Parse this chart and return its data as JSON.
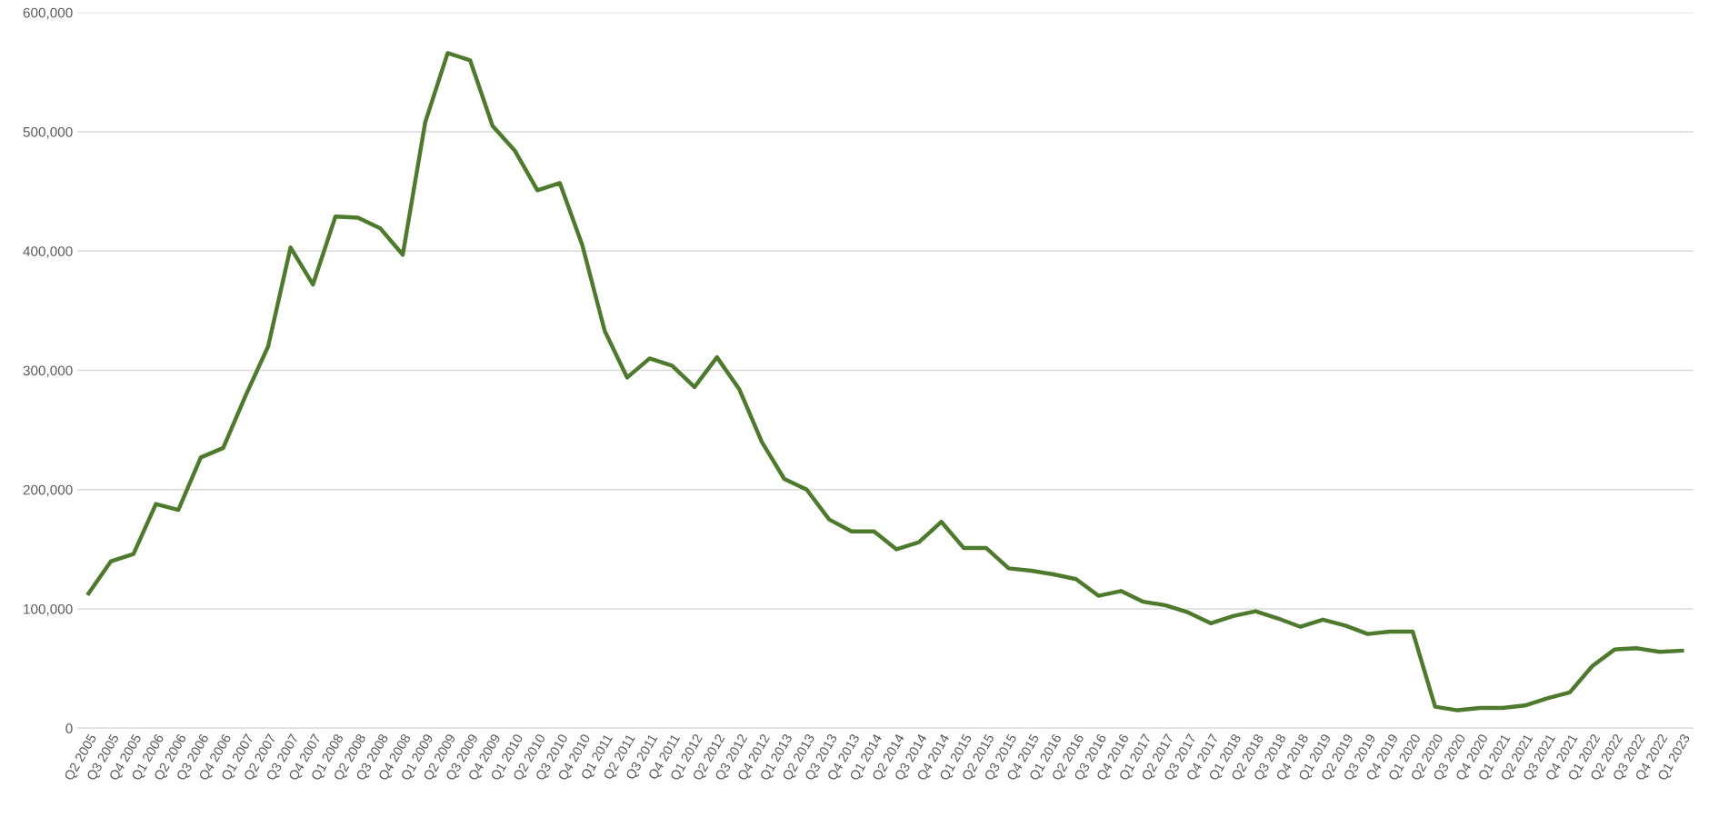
{
  "chart_data": {
    "type": "line",
    "categories": [
      "Q2 2005",
      "Q3 2005",
      "Q4 2005",
      "Q1 2006",
      "Q2 2006",
      "Q3 2006",
      "Q4 2006",
      "Q1 2007",
      "Q2 2007",
      "Q3 2007",
      "Q4 2007",
      "Q1 2008",
      "Q2 2008",
      "Q3 2008",
      "Q4 2008",
      "Q1 2009",
      "Q2 2009",
      "Q3 2009",
      "Q4 2009",
      "Q1 2010",
      "Q2 2010",
      "Q3 2010",
      "Q4 2010",
      "Q1 2011",
      "Q2 2011",
      "Q3 2011",
      "Q4 2011",
      "Q1 2012",
      "Q2 2012",
      "Q3 2012",
      "Q4 2012",
      "Q1 2013",
      "Q2 2013",
      "Q3 2013",
      "Q4 2013",
      "Q1 2014",
      "Q2 2014",
      "Q3 2014",
      "Q4 2014",
      "Q1 2015",
      "Q2 2015",
      "Q3 2015",
      "Q4 2015",
      "Q1 2016",
      "Q2 2016",
      "Q3 2016",
      "Q4 2016",
      "Q1 2017",
      "Q2 2017",
      "Q3 2017",
      "Q4 2017",
      "Q1 2018",
      "Q2 2018",
      "Q3 2018",
      "Q4 2018",
      "Q1 2019",
      "Q2 2019",
      "Q3 2019",
      "Q4 2019",
      "Q1 2020",
      "Q2 2020",
      "Q3 2020",
      "Q4 2020",
      "Q1 2021",
      "Q2 2021",
      "Q3 2021",
      "Q4 2021",
      "Q1 2022",
      "Q2 2022",
      "Q3 2022",
      "Q4 2022",
      "Q1 2023"
    ],
    "series": [
      {
        "color": "#4e7a2e",
        "values": [
          113000,
          140000,
          146000,
          188000,
          183000,
          227000,
          235000,
          279000,
          320000,
          403000,
          372000,
          429000,
          428000,
          419000,
          397000,
          508000,
          566000,
          560000,
          505000,
          484000,
          451000,
          457000,
          405000,
          333000,
          294000,
          310000,
          304000,
          286000,
          311000,
          284000,
          240000,
          209000,
          200000,
          175000,
          165000,
          165000,
          150000,
          156000,
          173000,
          151000,
          151000,
          134000,
          132000,
          129000,
          125000,
          111000,
          115000,
          106000,
          103000,
          97000,
          88000,
          94000,
          98000,
          92000,
          85000,
          91000,
          86000,
          79000,
          81000,
          81000,
          18000,
          15000,
          17000,
          17000,
          19000,
          25000,
          30000,
          52000,
          66000,
          67000,
          64000,
          65000
        ]
      }
    ],
    "ylim": [
      0,
      600000
    ],
    "yticks": [
      {
        "value": 0,
        "label": "0"
      },
      {
        "value": 100000,
        "label": "100,000"
      },
      {
        "value": 200000,
        "label": "200,000"
      },
      {
        "value": 300000,
        "label": "300,000"
      },
      {
        "value": 400000,
        "label": "400,000"
      },
      {
        "value": 500000,
        "label": "500,000"
      },
      {
        "value": 600000,
        "label": "600,000"
      }
    ],
    "grid": "y",
    "legend": false,
    "marker": "none",
    "line_style": "solid"
  }
}
